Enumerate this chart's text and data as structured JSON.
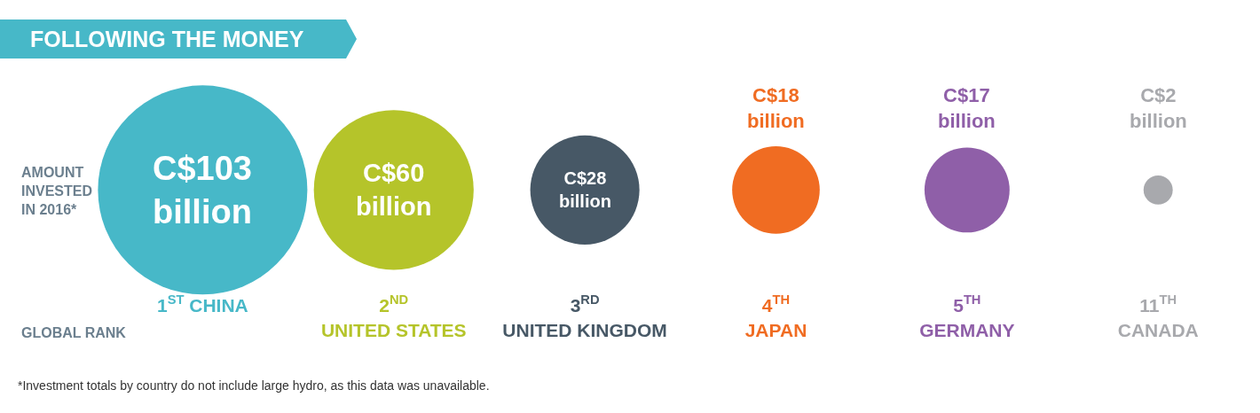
{
  "chart_data": {
    "type": "other",
    "title": "FOLLOWING THE MONEY",
    "categories": [
      "1$^{ST}$ CHINA",
      "2$^{ND}$\nUNITED STATES",
      "3$^{RD}$\nUNITED KINGDOM",
      "4$^{TH}$\nJAPAN",
      "5$^{TH}$\nGERMANY",
      "11$^{TH}$\nCANADA"
    ],
    "values": [
      103,
      60,
      28,
      18,
      17,
      2
    ],
    "value_labels": [
      "C$103\nbillion",
      "C$60\nbillion",
      "C$28\nbillion",
      "C$18\nbillion",
      "C$17\nbillion",
      "C$2\nbillion"
    ],
    "colors": [
      "#47b8c8",
      "#b5c42a",
      "#475866",
      "#f06c22",
      "#8f5fa8",
      "#a8a9ad"
    ],
    "annotations": [
      "AMOUNT\nINVESTED\nIN 2016*",
      "GLOBAL RANK",
      "*Investment totals by country do not include large hydro, as this data was unavailable."
    ]
  }
}
